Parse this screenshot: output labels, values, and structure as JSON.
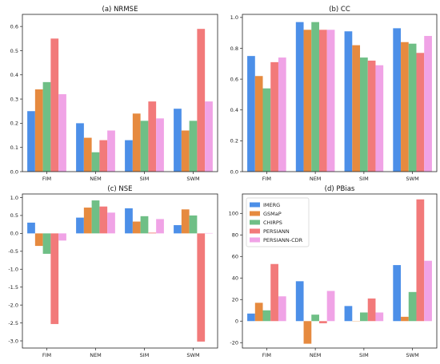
{
  "chart_data": [
    {
      "type": "bar",
      "title": "(a) NRMSE",
      "categories": [
        "FIM",
        "NEM",
        "SIM",
        "SWM"
      ],
      "ylim": [
        0,
        0.65
      ],
      "yticks": [
        "0.0",
        "0.1",
        "0.2",
        "0.3",
        "0.4",
        "0.5",
        "0.6"
      ],
      "series": [
        {
          "name": "IMERG",
          "values": [
            0.25,
            0.2,
            0.13,
            0.26
          ]
        },
        {
          "name": "GSMaP",
          "values": [
            0.34,
            0.14,
            0.24,
            0.17
          ]
        },
        {
          "name": "CHIRPS",
          "values": [
            0.37,
            0.08,
            0.21,
            0.21
          ]
        },
        {
          "name": "PERSIANN",
          "values": [
            0.55,
            0.13,
            0.29,
            0.59
          ]
        },
        {
          "name": "PERSIANN-CDR",
          "values": [
            0.32,
            0.17,
            0.22,
            0.29
          ]
        }
      ]
    },
    {
      "type": "bar",
      "title": "(b) CC",
      "categories": [
        "FIM",
        "NEM",
        "SIM",
        "SWM"
      ],
      "ylim": [
        0,
        1.02
      ],
      "yticks": [
        "0.0",
        "0.2",
        "0.4",
        "0.6",
        "0.8",
        "1.0"
      ],
      "series": [
        {
          "name": "IMERG",
          "values": [
            0.75,
            0.97,
            0.91,
            0.93
          ]
        },
        {
          "name": "GSMaP",
          "values": [
            0.62,
            0.92,
            0.82,
            0.84
          ]
        },
        {
          "name": "CHIRPS",
          "values": [
            0.54,
            0.97,
            0.74,
            0.83
          ]
        },
        {
          "name": "PERSIANN",
          "values": [
            0.71,
            0.92,
            0.72,
            0.77
          ]
        },
        {
          "name": "PERSIANN-CDR",
          "values": [
            0.74,
            0.92,
            0.69,
            0.88
          ]
        }
      ]
    },
    {
      "type": "bar",
      "title": "(c) NSE",
      "categories": [
        "FIM",
        "NEM",
        "SIM",
        "SWM"
      ],
      "ylim": [
        -3.2,
        1.1
      ],
      "yticks": [
        "1.0",
        "0.5",
        "0.0",
        "-0.5",
        "-1.0",
        "-1.5",
        "-2.0",
        "-2.5",
        "-3.0"
      ],
      "series": [
        {
          "name": "IMERG",
          "values": [
            0.3,
            0.44,
            0.7,
            0.23
          ]
        },
        {
          "name": "GSMaP",
          "values": [
            -0.35,
            0.72,
            0.33,
            0.67
          ]
        },
        {
          "name": "CHIRPS",
          "values": [
            -0.57,
            0.92,
            0.48,
            0.5
          ]
        },
        {
          "name": "PERSIANN",
          "values": [
            -2.53,
            0.75,
            0.02,
            -3.02
          ]
        },
        {
          "name": "PERSIANN-CDR",
          "values": [
            -0.2,
            0.58,
            0.4,
            0.01
          ]
        }
      ]
    },
    {
      "type": "bar",
      "title": "(d) PBias",
      "categories": [
        "FIM",
        "NEM",
        "SIM",
        "SWM"
      ],
      "ylim": [
        -25,
        118
      ],
      "yticks": [
        "100",
        "80",
        "60",
        "40",
        "20",
        "0",
        "-20"
      ],
      "legend_position": "top-left",
      "series": [
        {
          "name": "IMERG",
          "values": [
            7,
            37,
            14,
            52
          ]
        },
        {
          "name": "GSMaP",
          "values": [
            17,
            -21,
            0,
            4
          ]
        },
        {
          "name": "CHIRPS",
          "values": [
            10,
            6,
            8,
            27
          ]
        },
        {
          "name": "PERSIANN",
          "values": [
            53,
            -2,
            21,
            113
          ]
        },
        {
          "name": "PERSIANN-CDR",
          "values": [
            23,
            28,
            8,
            56
          ]
        }
      ]
    }
  ],
  "colors": [
    "#4c8fe8",
    "#e68a3f",
    "#6fbf86",
    "#f27a7a",
    "#f0a3e6"
  ]
}
